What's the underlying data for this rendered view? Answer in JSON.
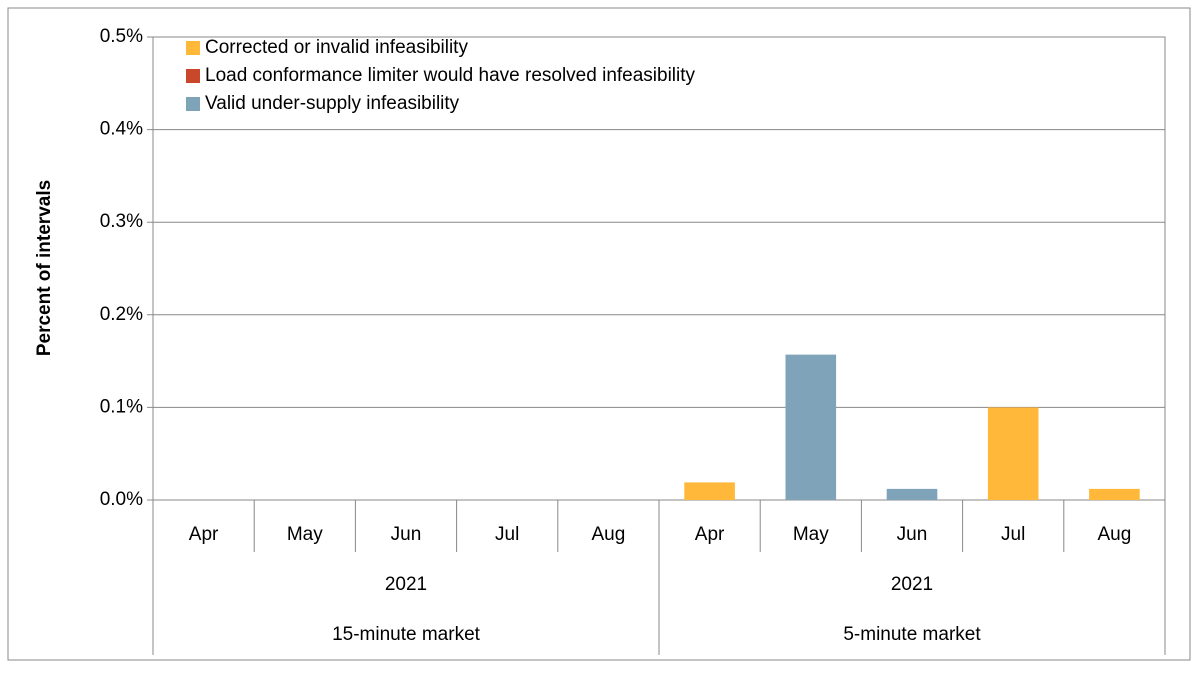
{
  "chart_data": {
    "type": "stacked_bar",
    "y_label": "Percent of intervals",
    "categories": [
      "Apr",
      "May",
      "Jun",
      "Jul",
      "Aug",
      "Apr",
      "May",
      "Jun",
      "Jul",
      "Aug"
    ],
    "category_years": [
      "2021",
      "2021"
    ],
    "category_groups": [
      "15-minute market",
      "5-minute market"
    ],
    "series": [
      {
        "name": "Corrected or invalid infeasibility",
        "color": "#ffb83a",
        "values": [
          0,
          0,
          0,
          0,
          0,
          0.019,
          0,
          0,
          0.1,
          0.012
        ]
      },
      {
        "name": "Load conformance limiter would have resolved infeasibility",
        "color": "#c9482b",
        "values": [
          0,
          0,
          0,
          0,
          0,
          0,
          0,
          0,
          0,
          0
        ]
      },
      {
        "name": "Valid under-supply infeasibility",
        "color": "#7fa3b8",
        "values": [
          0,
          0,
          0,
          0,
          0,
          0,
          0.157,
          0.012,
          0,
          0
        ]
      }
    ],
    "ylim": [
      0,
      0.5
    ],
    "yticks": [
      {
        "value": 0,
        "label": "0.0%"
      },
      {
        "value": 0.1,
        "label": "0.1%"
      },
      {
        "value": 0.2,
        "label": "0.2%"
      },
      {
        "value": 0.3,
        "label": "0.3%"
      },
      {
        "value": 0.4,
        "label": "0.4%"
      },
      {
        "value": 0.5,
        "label": "0.5%"
      }
    ],
    "grid": true,
    "legend": "top-left"
  }
}
